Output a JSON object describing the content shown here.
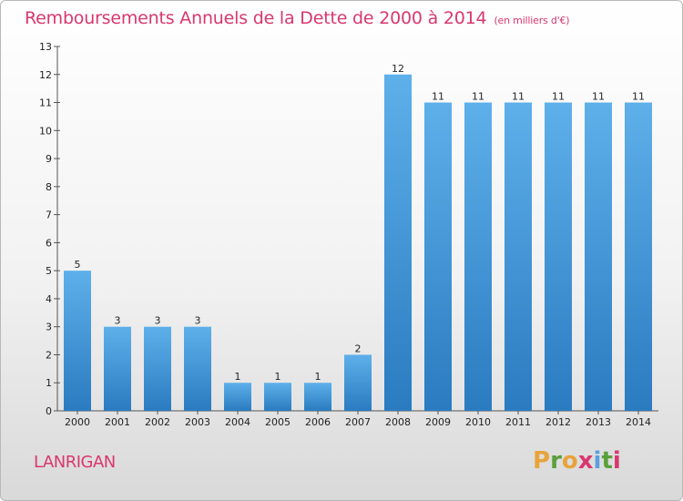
{
  "header": {
    "title": "Remboursements Annuels de la Dette de 2000 à 2014",
    "unit": "(en milliers d'€)"
  },
  "footer": {
    "commune": "LANRIGAN",
    "logo": {
      "letters": [
        "P",
        "r",
        "o",
        "x",
        "i",
        "t",
        "i"
      ],
      "colors": [
        "#e8a33c",
        "#5aa03c",
        "#e8a33c",
        "#d9376f",
        "#5aa0e0",
        "#5aa03c",
        "#d9376f"
      ]
    }
  },
  "colors": {
    "accent": "#d9376f",
    "bar_light": "#5eb0ea",
    "bar_dark": "#2a7bc0"
  },
  "chart_data": {
    "type": "bar",
    "title": "Remboursements Annuels de la Dette de 2000 à 2014",
    "xlabel": "",
    "ylabel": "",
    "categories": [
      "2000",
      "2001",
      "2002",
      "2003",
      "2004",
      "2005",
      "2006",
      "2007",
      "2008",
      "2009",
      "2010",
      "2011",
      "2012",
      "2013",
      "2014"
    ],
    "values": [
      5,
      3,
      3,
      3,
      1,
      1,
      1,
      2,
      12,
      11,
      11,
      11,
      11,
      11,
      11
    ],
    "ylim": [
      0,
      13
    ],
    "yticks": [
      0,
      1,
      2,
      3,
      4,
      5,
      6,
      7,
      8,
      9,
      10,
      11,
      12,
      13
    ],
    "grid": false,
    "legend": "none"
  }
}
